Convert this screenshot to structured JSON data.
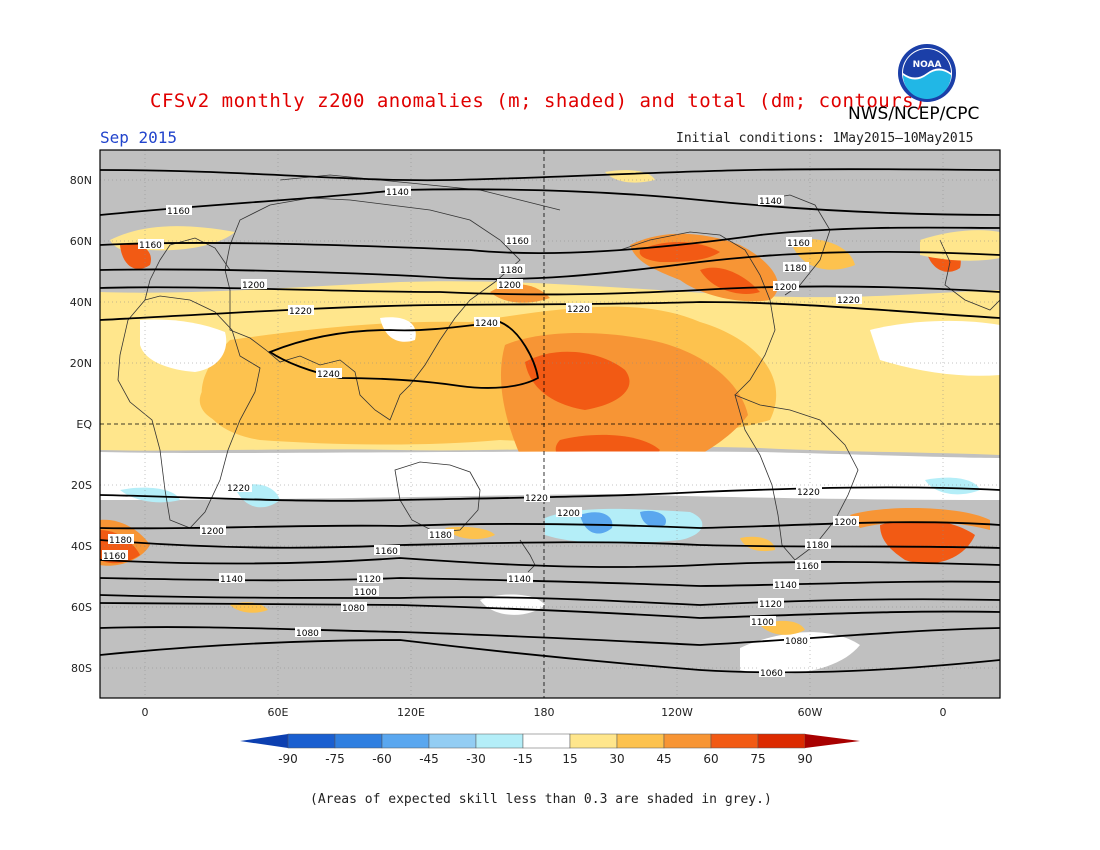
{
  "title": "CFSv2 monthly z200 anomalies (m; shaded) and total (dm; contours)",
  "agency": "NWS/NCEP/CPC",
  "logo_text": "NOAA",
  "month": "Sep 2015",
  "initial_conditions": "Initial conditions: 1May2015–10May2015",
  "footnote": "(Areas of expected skill less than 0.3 are shaded in grey.)",
  "colors": {
    "skill_grey": "#c0c0c0",
    "neutral": "#ffffff",
    "pos15": "#ffe68c",
    "pos30": "#fdc24e",
    "pos45": "#f79535",
    "pos60": "#f25a14",
    "pos75": "#dc2a00",
    "pos90": "#a80000",
    "neg15": "#b4eef8",
    "neg30": "#93cdf3",
    "neg45": "#5aa7ef",
    "neg60": "#2f7fe0",
    "neg75": "#1a5fd0",
    "neg90": "#0c3fb0"
  },
  "axes": {
    "lat_labels": [
      "80N",
      "60N",
      "40N",
      "20N",
      "EQ",
      "20S",
      "40S",
      "60S",
      "80S"
    ],
    "lon_labels": [
      "0",
      "60E",
      "120E",
      "180",
      "120W",
      "60W",
      "0"
    ]
  },
  "contour_labels": [
    "1140",
    "1160",
    "1180",
    "1200",
    "1220",
    "1240",
    "1100",
    "1120",
    "1080",
    "1060"
  ],
  "colorbar": {
    "labels": [
      "-90",
      "-75",
      "-60",
      "-45",
      "-30",
      "-15",
      "15",
      "30",
      "45",
      "60",
      "75",
      "90"
    ]
  }
}
